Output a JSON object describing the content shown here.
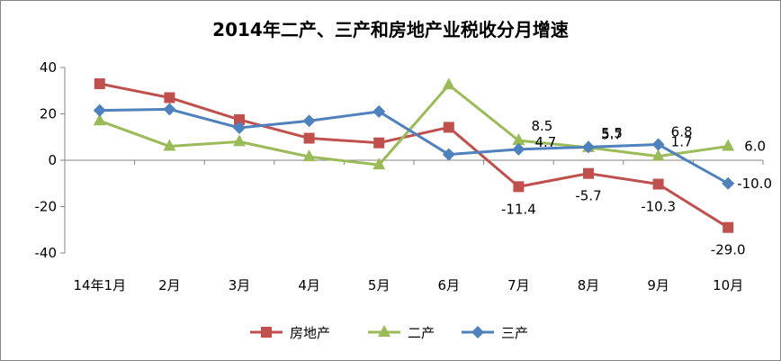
{
  "chart_data": {
    "type": "line",
    "title": "2014年二产、三产和房地产业税收分月增速",
    "xlabel": "",
    "ylabel": "",
    "categories": [
      "14年1月",
      "2月",
      "3月",
      "4月",
      "5月",
      "6月",
      "7月",
      "8月",
      "9月",
      "10月"
    ],
    "ylim": [
      -40,
      40
    ],
    "yticks": [
      40,
      20,
      0,
      -20,
      -40
    ],
    "grid": false,
    "legend_position": "bottom",
    "series": [
      {
        "name": "房地产",
        "color": "#c0504d",
        "marker": "square",
        "values": [
          33,
          27,
          17.5,
          9.5,
          7.5,
          14.2,
          -11.4,
          -5.7,
          -10.3,
          -29.0
        ],
        "labels": [
          null,
          null,
          null,
          null,
          null,
          null,
          "-11.4",
          "-5.7",
          "-10.3",
          "-29.0"
        ]
      },
      {
        "name": "二产",
        "color": "#9bbb59",
        "marker": "triangle",
        "values": [
          17,
          6,
          8,
          1.5,
          -2,
          32.5,
          8.5,
          5.5,
          1.7,
          6.0
        ],
        "labels": [
          null,
          null,
          null,
          null,
          null,
          null,
          "8.5",
          "5.5",
          "1.7",
          "6.0"
        ]
      },
      {
        "name": "三产",
        "color": "#4f81bd",
        "marker": "diamond",
        "values": [
          21.5,
          22,
          14,
          17,
          21,
          2.5,
          4.7,
          5.7,
          6.8,
          -10.0
        ],
        "labels": [
          null,
          null,
          null,
          null,
          null,
          null,
          "4.7",
          "5.7",
          "6.8",
          "-10.0"
        ]
      }
    ]
  }
}
